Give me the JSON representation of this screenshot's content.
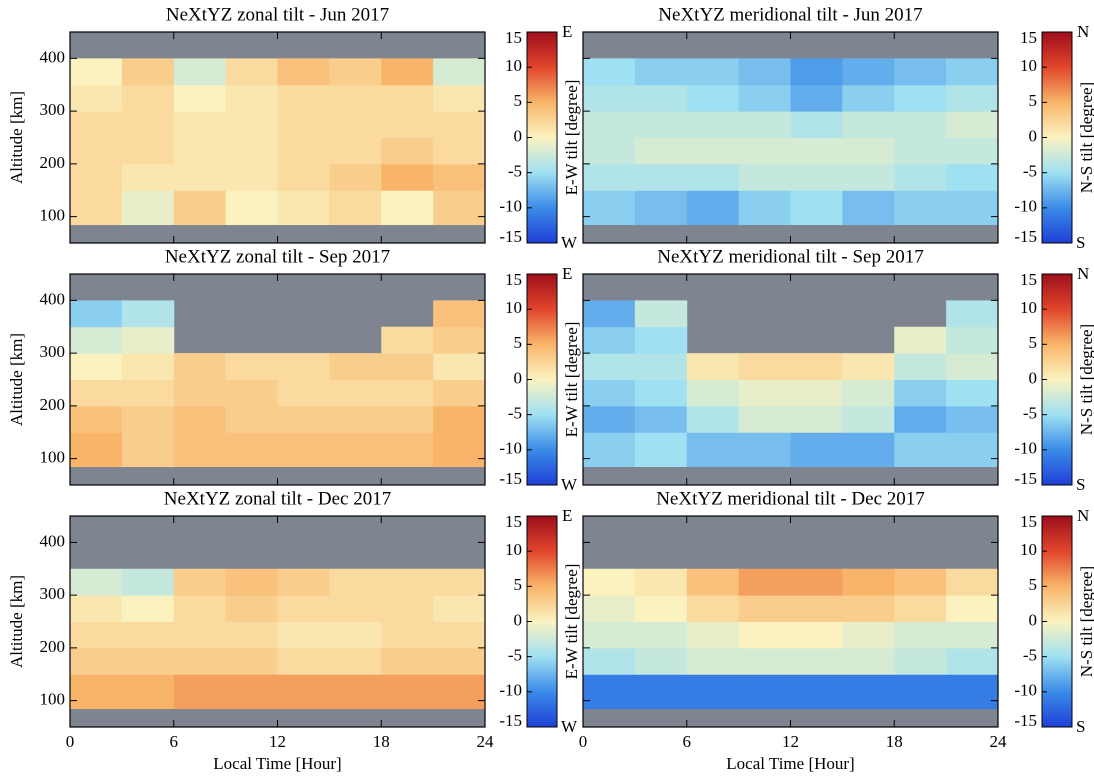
{
  "chart_data": [
    {
      "type": "heatmap",
      "title": "NeXtYZ zonal tilt - Jun 2017",
      "ylabel": "Altitude [km]",
      "xlim": [
        0,
        24
      ],
      "xticks": [
        0,
        6,
        12,
        18,
        24
      ],
      "ylim": [
        50,
        450
      ],
      "yticks": [
        100,
        200,
        300,
        400
      ],
      "xbins": [
        0,
        3,
        6,
        9,
        12,
        15,
        18,
        21,
        24
      ],
      "ybins": [
        50,
        85,
        150,
        200,
        250,
        300,
        350,
        400,
        450
      ],
      "values": [
        [
          null,
          null,
          null,
          null,
          null,
          null,
          null,
          null
        ],
        [
          2,
          -1,
          3,
          0,
          1,
          2,
          0,
          3
        ],
        [
          2,
          1,
          1,
          1,
          2,
          3,
          5,
          4
        ],
        [
          2,
          2,
          1,
          1,
          2,
          2,
          3,
          2
        ],
        [
          2,
          2,
          1,
          1,
          2,
          2,
          2,
          2
        ],
        [
          1,
          2,
          0,
          1,
          2,
          2,
          2,
          1
        ],
        [
          0,
          3,
          -2,
          2,
          4,
          3,
          5,
          -2
        ],
        [
          null,
          null,
          null,
          null,
          null,
          null,
          null,
          null
        ]
      ],
      "clim": [
        -15,
        15
      ],
      "cticks": [
        -15,
        -10,
        -5,
        0,
        5,
        10,
        15
      ],
      "clabel": "E-W tilt [degree]",
      "cmin_label": "W",
      "cmax_label": "E",
      "colormap": [
        "#1f3fd6",
        "#3b8be8",
        "#9fe0f2",
        "#fbf2c0",
        "#f8b56a",
        "#e2452c",
        "#9e0f1c"
      ],
      "nodata_color": "#7f8491"
    },
    {
      "type": "heatmap",
      "title": "NeXtYZ meridional tilt - Jun 2017",
      "xlim": [
        0,
        24
      ],
      "xticks": [
        0,
        6,
        12,
        18,
        24
      ],
      "ylim": [
        50,
        450
      ],
      "yticks": [
        100,
        200,
        300,
        400
      ],
      "xbins": [
        0,
        3,
        6,
        9,
        12,
        15,
        18,
        21,
        24
      ],
      "ybins": [
        50,
        85,
        150,
        200,
        250,
        300,
        350,
        400,
        450
      ],
      "values": [
        [
          null,
          null,
          null,
          null,
          null,
          null,
          null,
          null
        ],
        [
          -6,
          -7,
          -8,
          -6,
          -5,
          -7,
          -6,
          -6
        ],
        [
          -4,
          -4,
          -4,
          -3,
          -3,
          -3,
          -4,
          -5
        ],
        [
          -3,
          -2,
          -2,
          -2,
          -2,
          -2,
          -3,
          -3
        ],
        [
          -3,
          -3,
          -3,
          -3,
          -4,
          -3,
          -3,
          -2
        ],
        [
          -4,
          -4,
          -5,
          -6,
          -8,
          -6,
          -5,
          -4
        ],
        [
          -5,
          -6,
          -6,
          -7,
          -9,
          -8,
          -7,
          -6
        ],
        [
          null,
          null,
          null,
          null,
          null,
          null,
          null,
          null
        ]
      ],
      "clim": [
        -15,
        15
      ],
      "cticks": [
        -15,
        -10,
        -5,
        0,
        5,
        10,
        15
      ],
      "clabel": "N-S tilt [degree]",
      "cmin_label": "S",
      "cmax_label": "N",
      "colormap": [
        "#1f3fd6",
        "#3b8be8",
        "#9fe0f2",
        "#fbf2c0",
        "#f8b56a",
        "#e2452c",
        "#9e0f1c"
      ],
      "nodata_color": "#7f8491"
    },
    {
      "type": "heatmap",
      "title": "NeXtYZ zonal tilt - Sep 2017",
      "ylabel": "Altitude [km]",
      "xlim": [
        0,
        24
      ],
      "xticks": [
        0,
        6,
        12,
        18,
        24
      ],
      "ylim": [
        50,
        450
      ],
      "yticks": [
        100,
        200,
        300,
        400
      ],
      "xbins": [
        0,
        3,
        6,
        9,
        12,
        15,
        18,
        21,
        24
      ],
      "ybins": [
        50,
        85,
        150,
        200,
        250,
        300,
        350,
        400,
        450
      ],
      "values": [
        [
          null,
          null,
          null,
          null,
          null,
          null,
          null,
          null
        ],
        [
          5,
          3,
          4,
          4,
          4,
          4,
          4,
          5
        ],
        [
          4,
          3,
          4,
          3,
          3,
          3,
          3,
          5
        ],
        [
          2,
          2,
          3,
          3,
          2,
          2,
          2,
          3
        ],
        [
          0,
          1,
          3,
          2,
          2,
          3,
          3,
          1
        ],
        [
          -2,
          -1,
          null,
          null,
          null,
          null,
          2,
          3
        ],
        [
          -6,
          -4,
          null,
          null,
          null,
          null,
          null,
          4
        ],
        [
          null,
          null,
          null,
          null,
          null,
          null,
          null,
          null
        ]
      ],
      "clim": [
        -15,
        15
      ],
      "cticks": [
        -15,
        -10,
        -5,
        0,
        5,
        10,
        15
      ],
      "clabel": "E-W tilt [degree]",
      "cmin_label": "W",
      "cmax_label": "E",
      "colormap": [
        "#1f3fd6",
        "#3b8be8",
        "#9fe0f2",
        "#fbf2c0",
        "#f8b56a",
        "#e2452c",
        "#9e0f1c"
      ],
      "nodata_color": "#7f8491"
    },
    {
      "type": "heatmap",
      "title": "NeXtYZ meridional tilt - Sep 2017",
      "xlim": [
        0,
        24
      ],
      "xticks": [
        0,
        6,
        12,
        18,
        24
      ],
      "ylim": [
        50,
        450
      ],
      "yticks": [
        100,
        200,
        300,
        400
      ],
      "xbins": [
        0,
        3,
        6,
        9,
        12,
        15,
        18,
        21,
        24
      ],
      "ybins": [
        50,
        85,
        150,
        200,
        250,
        300,
        350,
        400,
        450
      ],
      "values": [
        [
          null,
          null,
          null,
          null,
          null,
          null,
          null,
          null
        ],
        [
          -6,
          -5,
          -7,
          -7,
          -8,
          -8,
          -6,
          -6
        ],
        [
          -8,
          -7,
          -4,
          -2,
          -2,
          -3,
          -8,
          -7
        ],
        [
          -6,
          -5,
          -2,
          -1,
          -1,
          -2,
          -6,
          -5
        ],
        [
          -4,
          -4,
          1,
          2,
          2,
          1,
          -3,
          -2
        ],
        [
          -6,
          -5,
          null,
          null,
          null,
          null,
          -1,
          -3
        ],
        [
          -8,
          -3,
          null,
          null,
          null,
          null,
          null,
          -4
        ],
        [
          null,
          null,
          null,
          null,
          null,
          null,
          null,
          null
        ]
      ],
      "clim": [
        -15,
        15
      ],
      "cticks": [
        -15,
        -10,
        -5,
        0,
        5,
        10,
        15
      ],
      "clabel": "N-S tilt [degree]",
      "cmin_label": "S",
      "cmax_label": "N",
      "colormap": [
        "#1f3fd6",
        "#3b8be8",
        "#9fe0f2",
        "#fbf2c0",
        "#f8b56a",
        "#e2452c",
        "#9e0f1c"
      ],
      "nodata_color": "#7f8491"
    },
    {
      "type": "heatmap",
      "title": "NeXtYZ zonal tilt - Dec 2017",
      "ylabel": "Altitude [km]",
      "xlabel": "Local Time [Hour]",
      "xlim": [
        0,
        24
      ],
      "xticks": [
        0,
        6,
        12,
        18,
        24
      ],
      "ylim": [
        50,
        450
      ],
      "yticks": [
        100,
        200,
        300,
        400
      ],
      "xbins": [
        0,
        3,
        6,
        9,
        12,
        15,
        18,
        21,
        24
      ],
      "ybins": [
        50,
        85,
        150,
        200,
        250,
        300,
        350,
        400,
        450
      ],
      "values": [
        [
          null,
          null,
          null,
          null,
          null,
          null,
          null,
          null
        ],
        [
          5,
          5,
          6,
          6,
          6,
          6,
          6,
          6
        ],
        [
          3,
          3,
          3,
          3,
          2,
          2,
          3,
          3
        ],
        [
          2,
          2,
          2,
          2,
          1,
          1,
          2,
          2
        ],
        [
          1,
          0,
          2,
          3,
          2,
          2,
          2,
          1
        ],
        [
          -2,
          -3,
          3,
          4,
          3,
          2,
          2,
          2
        ],
        [
          null,
          null,
          null,
          null,
          null,
          null,
          null,
          null
        ],
        [
          null,
          null,
          null,
          null,
          null,
          null,
          null,
          null
        ]
      ],
      "clim": [
        -15,
        15
      ],
      "cticks": [
        -15,
        -10,
        -5,
        0,
        5,
        10,
        15
      ],
      "clabel": "E-W tilt [degree]",
      "cmin_label": "W",
      "cmax_label": "E",
      "colormap": [
        "#1f3fd6",
        "#3b8be8",
        "#9fe0f2",
        "#fbf2c0",
        "#f8b56a",
        "#e2452c",
        "#9e0f1c"
      ],
      "nodata_color": "#7f8491"
    },
    {
      "type": "heatmap",
      "title": "NeXtYZ meridional tilt - Dec 2017",
      "xlabel": "Local Time [Hour]",
      "xlim": [
        0,
        24
      ],
      "xticks": [
        0,
        6,
        12,
        18,
        24
      ],
      "ylim": [
        50,
        450
      ],
      "yticks": [
        100,
        200,
        300,
        400
      ],
      "xbins": [
        0,
        3,
        6,
        9,
        12,
        15,
        18,
        21,
        24
      ],
      "ybins": [
        50,
        85,
        150,
        200,
        250,
        300,
        350,
        400,
        450
      ],
      "values": [
        [
          null,
          null,
          null,
          null,
          null,
          null,
          null,
          null
        ],
        [
          -11,
          -11,
          -11,
          -11,
          -11,
          -11,
          -11,
          -11
        ],
        [
          -4,
          -3,
          -2,
          -2,
          -2,
          -2,
          -3,
          -4
        ],
        [
          -2,
          -2,
          -1,
          0,
          0,
          -1,
          -2,
          -2
        ],
        [
          -1,
          0,
          2,
          3,
          3,
          3,
          2,
          0
        ],
        [
          0,
          1,
          4,
          6,
          6,
          5,
          4,
          2
        ],
        [
          null,
          null,
          null,
          null,
          null,
          null,
          null,
          null
        ],
        [
          null,
          null,
          null,
          null,
          null,
          null,
          null,
          null
        ]
      ],
      "clim": [
        -15,
        15
      ],
      "cticks": [
        -15,
        -10,
        -5,
        0,
        5,
        10,
        15
      ],
      "clabel": "N-S tilt [degree]",
      "cmin_label": "S",
      "cmax_label": "N",
      "colormap": [
        "#1f3fd6",
        "#3b8be8",
        "#9fe0f2",
        "#fbf2c0",
        "#f8b56a",
        "#e2452c",
        "#9e0f1c"
      ],
      "nodata_color": "#7f8491"
    }
  ]
}
